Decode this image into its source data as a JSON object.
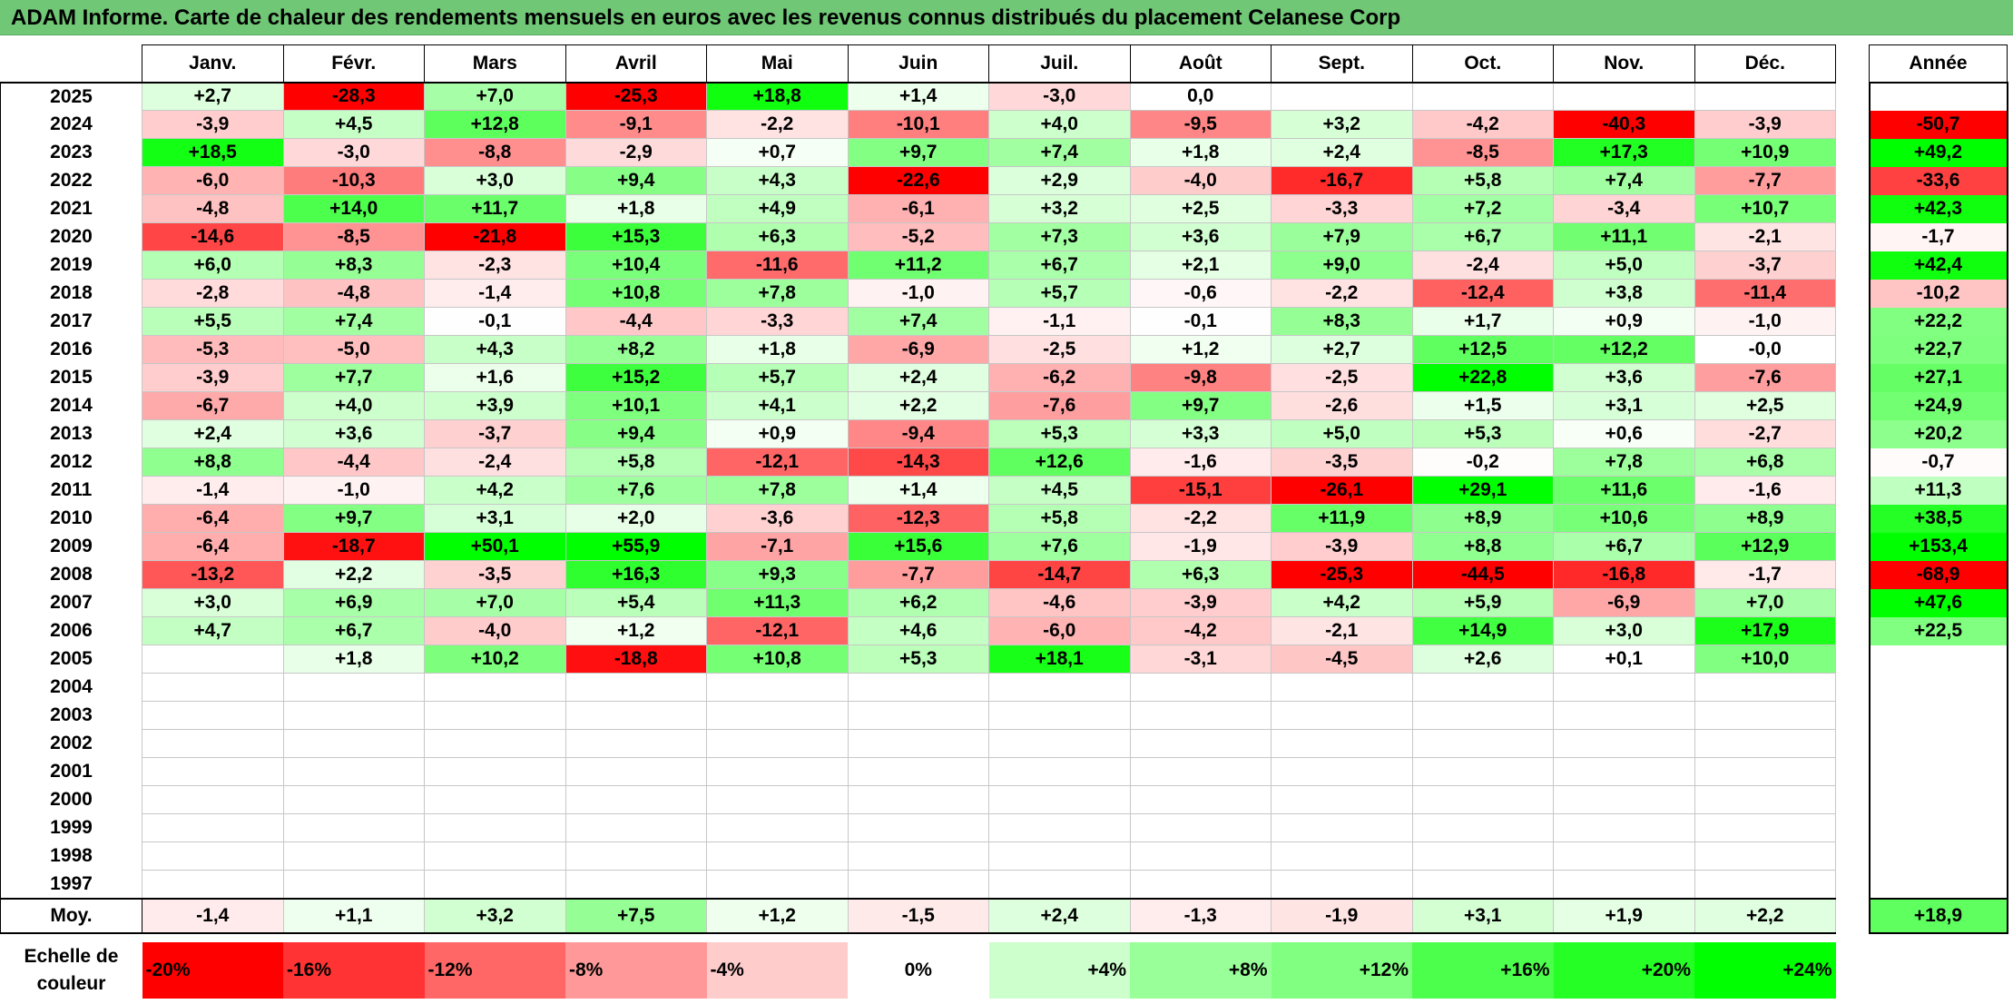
{
  "title": "ADAM Informe. Carte de chaleur des rendements mensuels en euros avec les revenus connus distribués du placement Celanese Corp",
  "chart_data": {
    "type": "heatmap",
    "title": "ADAM Informe. Carte de chaleur des rendements mensuels en euros avec les revenus connus distribués du placement Celanese Corp",
    "months": [
      "Janv.",
      "Févr.",
      "Mars",
      "Avril",
      "Mai",
      "Juin",
      "Juil.",
      "Août",
      "Sept.",
      "Oct.",
      "Nov.",
      "Déc."
    ],
    "year_header": "Année",
    "rows": [
      {
        "year": "2025",
        "values": [
          "+2,7",
          "-28,3",
          "+7,0",
          "-25,3",
          "+18,8",
          "+1,4",
          "-3,0",
          "0,0",
          "",
          "",
          "",
          ""
        ],
        "annual": ""
      },
      {
        "year": "2024",
        "values": [
          "-3,9",
          "+4,5",
          "+12,8",
          "-9,1",
          "-2,2",
          "-10,1",
          "+4,0",
          "-9,5",
          "+3,2",
          "-4,2",
          "-40,3",
          "-3,9"
        ],
        "annual": "-50,7"
      },
      {
        "year": "2023",
        "values": [
          "+18,5",
          "-3,0",
          "-8,8",
          "-2,9",
          "+0,7",
          "+9,7",
          "+7,4",
          "+1,8",
          "+2,4",
          "-8,5",
          "+17,3",
          "+10,9"
        ],
        "annual": "+49,2"
      },
      {
        "year": "2022",
        "values": [
          "-6,0",
          "-10,3",
          "+3,0",
          "+9,4",
          "+4,3",
          "-22,6",
          "+2,9",
          "-4,0",
          "-16,7",
          "+5,8",
          "+7,4",
          "-7,7"
        ],
        "annual": "-33,6"
      },
      {
        "year": "2021",
        "values": [
          "-4,8",
          "+14,0",
          "+11,7",
          "+1,8",
          "+4,9",
          "-6,1",
          "+3,2",
          "+2,5",
          "-3,3",
          "+7,2",
          "-3,4",
          "+10,7"
        ],
        "annual": "+42,3"
      },
      {
        "year": "2020",
        "values": [
          "-14,6",
          "-8,5",
          "-21,8",
          "+15,3",
          "+6,3",
          "-5,2",
          "+7,3",
          "+3,6",
          "+7,9",
          "+6,7",
          "+11,1",
          "-2,1"
        ],
        "annual": "-1,7"
      },
      {
        "year": "2019",
        "values": [
          "+6,0",
          "+8,3",
          "-2,3",
          "+10,4",
          "-11,6",
          "+11,2",
          "+6,7",
          "+2,1",
          "+9,0",
          "-2,4",
          "+5,0",
          "-3,7"
        ],
        "annual": "+42,4"
      },
      {
        "year": "2018",
        "values": [
          "-2,8",
          "-4,8",
          "-1,4",
          "+10,8",
          "+7,8",
          "-1,0",
          "+5,7",
          "-0,6",
          "-2,2",
          "-12,4",
          "+3,8",
          "-11,4"
        ],
        "annual": "-10,2"
      },
      {
        "year": "2017",
        "values": [
          "+5,5",
          "+7,4",
          "-0,1",
          "-4,4",
          "-3,3",
          "+7,4",
          "-1,1",
          "-0,1",
          "+8,3",
          "+1,7",
          "+0,9",
          "-1,0"
        ],
        "annual": "+22,2"
      },
      {
        "year": "2016",
        "values": [
          "-5,3",
          "-5,0",
          "+4,3",
          "+8,2",
          "+1,8",
          "-6,9",
          "-2,5",
          "+1,2",
          "+2,7",
          "+12,5",
          "+12,2",
          "-0,0"
        ],
        "annual": "+22,7"
      },
      {
        "year": "2015",
        "values": [
          "-3,9",
          "+7,7",
          "+1,6",
          "+15,2",
          "+5,7",
          "+2,4",
          "-6,2",
          "-9,8",
          "-2,5",
          "+22,8",
          "+3,6",
          "-7,6"
        ],
        "annual": "+27,1"
      },
      {
        "year": "2014",
        "values": [
          "-6,7",
          "+4,0",
          "+3,9",
          "+10,1",
          "+4,1",
          "+2,2",
          "-7,6",
          "+9,7",
          "-2,6",
          "+1,5",
          "+3,1",
          "+2,5"
        ],
        "annual": "+24,9"
      },
      {
        "year": "2013",
        "values": [
          "+2,4",
          "+3,6",
          "-3,7",
          "+9,4",
          "+0,9",
          "-9,4",
          "+5,3",
          "+3,3",
          "+5,0",
          "+5,3",
          "+0,6",
          "-2,7"
        ],
        "annual": "+20,2"
      },
      {
        "year": "2012",
        "values": [
          "+8,8",
          "-4,4",
          "-2,4",
          "+5,8",
          "-12,1",
          "-14,3",
          "+12,6",
          "-1,6",
          "-3,5",
          "-0,2",
          "+7,8",
          "+6,8"
        ],
        "annual": "-0,7"
      },
      {
        "year": "2011",
        "values": [
          "-1,4",
          "-1,0",
          "+4,2",
          "+7,6",
          "+7,8",
          "+1,4",
          "+4,5",
          "-15,1",
          "-26,1",
          "+29,1",
          "+11,6",
          "-1,6"
        ],
        "annual": "+11,3"
      },
      {
        "year": "2010",
        "values": [
          "-6,4",
          "+9,7",
          "+3,1",
          "+2,0",
          "-3,6",
          "-12,3",
          "+5,8",
          "-2,2",
          "+11,9",
          "+8,9",
          "+10,6",
          "+8,9"
        ],
        "annual": "+38,5"
      },
      {
        "year": "2009",
        "values": [
          "-6,4",
          "-18,7",
          "+50,1",
          "+55,9",
          "-7,1",
          "+15,6",
          "+7,6",
          "-1,9",
          "-3,9",
          "+8,8",
          "+6,7",
          "+12,9"
        ],
        "annual": "+153,4"
      },
      {
        "year": "2008",
        "values": [
          "-13,2",
          "+2,2",
          "-3,5",
          "+16,3",
          "+9,3",
          "-7,7",
          "-14,7",
          "+6,3",
          "-25,3",
          "-44,5",
          "-16,8",
          "-1,7"
        ],
        "annual": "-68,9"
      },
      {
        "year": "2007",
        "values": [
          "+3,0",
          "+6,9",
          "+7,0",
          "+5,4",
          "+11,3",
          "+6,2",
          "-4,6",
          "-3,9",
          "+4,2",
          "+5,9",
          "-6,9",
          "+7,0"
        ],
        "annual": "+47,6"
      },
      {
        "year": "2006",
        "values": [
          "+4,7",
          "+6,7",
          "-4,0",
          "+1,2",
          "-12,1",
          "+4,6",
          "-6,0",
          "-4,2",
          "-2,1",
          "+14,9",
          "+3,0",
          "+17,9"
        ],
        "annual": "+22,5"
      },
      {
        "year": "2005",
        "values": [
          "",
          "+1,8",
          "+10,2",
          "-18,8",
          "+10,8",
          "+5,3",
          "+18,1",
          "-3,1",
          "-4,5",
          "+2,6",
          "+0,1",
          "+10,0"
        ],
        "annual": ""
      },
      {
        "year": "2004",
        "values": [
          "",
          "",
          "",
          "",
          "",
          "",
          "",
          "",
          "",
          "",
          "",
          ""
        ],
        "annual": ""
      },
      {
        "year": "2003",
        "values": [
          "",
          "",
          "",
          "",
          "",
          "",
          "",
          "",
          "",
          "",
          "",
          ""
        ],
        "annual": ""
      },
      {
        "year": "2002",
        "values": [
          "",
          "",
          "",
          "",
          "",
          "",
          "",
          "",
          "",
          "",
          "",
          ""
        ],
        "annual": ""
      },
      {
        "year": "2001",
        "values": [
          "",
          "",
          "",
          "",
          "",
          "",
          "",
          "",
          "",
          "",
          "",
          ""
        ],
        "annual": ""
      },
      {
        "year": "2000",
        "values": [
          "",
          "",
          "",
          "",
          "",
          "",
          "",
          "",
          "",
          "",
          "",
          ""
        ],
        "annual": ""
      },
      {
        "year": "1999",
        "values": [
          "",
          "",
          "",
          "",
          "",
          "",
          "",
          "",
          "",
          "",
          "",
          ""
        ],
        "annual": ""
      },
      {
        "year": "1998",
        "values": [
          "",
          "",
          "",
          "",
          "",
          "",
          "",
          "",
          "",
          "",
          "",
          ""
        ],
        "annual": ""
      },
      {
        "year": "1997",
        "values": [
          "",
          "",
          "",
          "",
          "",
          "",
          "",
          "",
          "",
          "",
          "",
          ""
        ],
        "annual": ""
      }
    ],
    "average": {
      "label": "Moy.",
      "values": [
        "-1,4",
        "+1,1",
        "+3,2",
        "+7,5",
        "+1,2",
        "-1,5",
        "+2,4",
        "-1,3",
        "-1,9",
        "+3,1",
        "+1,9",
        "+2,2"
      ],
      "annual": "+18,9"
    },
    "scale": {
      "label": "Echelle de couleur",
      "steps": [
        "-20%",
        "-16%",
        "-12%",
        "-8%",
        "-4%",
        "0%",
        "+4%",
        "+8%",
        "+12%",
        "+16%",
        "+20%",
        "+24%"
      ],
      "colors": [
        "#ff0000",
        "#ff3333",
        "#ff6666",
        "#ff9999",
        "#ffcccc",
        "#ffffff",
        "#ccffcc",
        "#99ff99",
        "#80ff80",
        "#4dff4d",
        "#26ff26",
        "#00ff00"
      ]
    },
    "colors": {
      "negative": "#ff0000",
      "neutral": "#ffffff",
      "positive": "#00ff00",
      "title_bar": "#70c776"
    }
  }
}
